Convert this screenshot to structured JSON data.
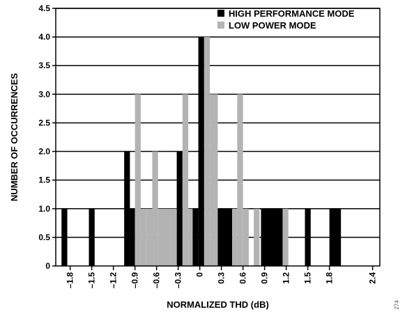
{
  "chart_data": {
    "type": "bar",
    "xlabel": "NORMALIZED THD (dB)",
    "ylabel": "NUMBER OF OCCURRENCES",
    "xlim": [
      -2.0,
      2.5
    ],
    "ylim": [
      0,
      4.5
    ],
    "x_ticks": [
      -1.8,
      -1.5,
      -1.2,
      -0.9,
      -0.6,
      -0.3,
      0,
      0.3,
      0.6,
      0.9,
      1.2,
      1.5,
      1.8,
      2.4
    ],
    "x_tick_labels": [
      "–1.8",
      "–1.5",
      "–1.2",
      "–0.9",
      "–0.6",
      "–0.3",
      "0",
      "0.3",
      "0.6",
      "0.9",
      "1.2",
      "1.5",
      "1.8",
      "2.4"
    ],
    "y_ticks": [
      0,
      0.5,
      1.0,
      1.5,
      2.0,
      2.5,
      3.0,
      3.5,
      4.0,
      4.5
    ],
    "y_tick_labels": [
      "0",
      "0.5",
      "1.0",
      "1.5",
      "2.0",
      "2.5",
      "3.0",
      "3.5",
      "4.0",
      "4.5"
    ],
    "grid": "horizontal",
    "legend_position": "top-right",
    "series": [
      {
        "name": "HIGH PERFORMANCE MODE",
        "color": "#000000",
        "bins": [
          {
            "x0": -1.92,
            "x1": -1.84,
            "y": 1
          },
          {
            "x0": -1.54,
            "x1": -1.46,
            "y": 1
          },
          {
            "x0": -1.05,
            "x1": -0.97,
            "y": 2
          },
          {
            "x0": -0.97,
            "x1": -0.9,
            "y": 1
          },
          {
            "x0": -0.32,
            "x1": -0.24,
            "y": 2
          },
          {
            "x0": -0.1,
            "x1": -0.02,
            "y": 1
          },
          {
            "x0": -0.02,
            "x1": 0.06,
            "y": 4
          },
          {
            "x0": 0.06,
            "x1": 0.12,
            "y": 3
          },
          {
            "x0": 0.25,
            "x1": 0.45,
            "y": 1
          },
          {
            "x0": 0.85,
            "x1": 1.15,
            "y": 1
          },
          {
            "x0": 1.46,
            "x1": 1.54,
            "y": 1
          },
          {
            "x0": 1.8,
            "x1": 1.96,
            "y": 1
          }
        ]
      },
      {
        "name": "LOW POWER MODE",
        "color": "#b3b3b3",
        "bins": [
          {
            "x0": -0.9,
            "x1": -0.82,
            "y": 3
          },
          {
            "x0": -0.82,
            "x1": -0.74,
            "y": 1
          },
          {
            "x0": -0.74,
            "x1": -0.66,
            "y": 1
          },
          {
            "x0": -0.66,
            "x1": -0.58,
            "y": 2
          },
          {
            "x0": -0.58,
            "x1": -0.32,
            "y": 1
          },
          {
            "x0": -0.24,
            "x1": -0.16,
            "y": 3
          },
          {
            "x0": -0.16,
            "x1": -0.1,
            "y": 1
          },
          {
            "x0": 0.06,
            "x1": 0.14,
            "y": 4
          },
          {
            "x0": 0.14,
            "x1": 0.25,
            "y": 3
          },
          {
            "x0": 0.45,
            "x1": 0.52,
            "y": 1
          },
          {
            "x0": 0.52,
            "x1": 0.6,
            "y": 3
          },
          {
            "x0": 0.6,
            "x1": 0.68,
            "y": 1
          },
          {
            "x0": 0.75,
            "x1": 0.83,
            "y": 1
          },
          {
            "x0": 1.15,
            "x1": 1.23,
            "y": 1
          }
        ]
      }
    ]
  },
  "figure_code": "274"
}
